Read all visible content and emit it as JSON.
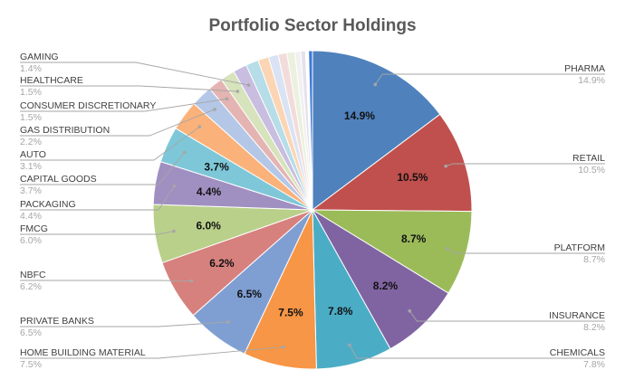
{
  "chart_data": {
    "type": "pie",
    "title": "Portfolio Sector Holdings",
    "value_unit": "%",
    "legend_placement": "callouts",
    "slices": [
      {
        "label": "PHARMA",
        "value": 14.9,
        "display": "14.9%",
        "color": "#4f81bd"
      },
      {
        "label": "RETAIL",
        "value": 10.5,
        "display": "10.5%",
        "color": "#c0504d"
      },
      {
        "label": "PLATFORM",
        "value": 8.7,
        "display": "8.7%",
        "color": "#9bbb59"
      },
      {
        "label": "INSURANCE",
        "value": 8.2,
        "display": "8.2%",
        "color": "#8064a2"
      },
      {
        "label": "CHEMICALS",
        "value": 7.8,
        "display": "7.8%",
        "color": "#4bacc6"
      },
      {
        "label": "HOME BUILDING MATERIAL",
        "value": 7.5,
        "display": "7.5%",
        "color": "#f79646"
      },
      {
        "label": "PRIVATE BANKS",
        "value": 6.5,
        "display": "6.5%",
        "color": "#7f9fd3"
      },
      {
        "label": "NBFC",
        "value": 6.2,
        "display": "6.2%",
        "color": "#d6817e"
      },
      {
        "label": "FMCG",
        "value": 6.0,
        "display": "6.0%",
        "color": "#b9d08a"
      },
      {
        "label": "PACKAGING",
        "value": 4.4,
        "display": "4.4%",
        "color": "#a08fc1"
      },
      {
        "label": "CAPITAL GOODS",
        "value": 3.7,
        "display": "3.7%",
        "color": "#7ec7d8"
      },
      {
        "label": "AUTO",
        "value": 3.1,
        "display": "3.1%",
        "color": "#fab27a"
      },
      {
        "label": "GAS DISTRIBUTION",
        "value": 2.2,
        "display": "2.2%",
        "color": "#b4c7e7"
      },
      {
        "label": "CONSUMER DISCRETIONARY",
        "value": 1.5,
        "display": "1.5%",
        "color": "#e4b4b2"
      },
      {
        "label": "HEALTHCARE",
        "value": 1.5,
        "display": "1.5%",
        "color": "#d6e3bc"
      },
      {
        "label": "GAMING",
        "value": 1.4,
        "display": "1.4%",
        "color": "#c9bde0"
      },
      {
        "label": "",
        "value": 1.3,
        "display": "",
        "color": "#b6dde8"
      },
      {
        "label": "",
        "value": 1.1,
        "display": "",
        "color": "#fcd5b4"
      },
      {
        "label": "",
        "value": 1.0,
        "display": "",
        "color": "#dae3f3"
      },
      {
        "label": "",
        "value": 0.9,
        "display": "",
        "color": "#f2dcdb"
      },
      {
        "label": "",
        "value": 0.8,
        "display": "",
        "color": "#ebf1de"
      },
      {
        "label": "",
        "value": 0.6,
        "display": "",
        "color": "#f1f1f1"
      },
      {
        "label": "",
        "value": 0.5,
        "display": "",
        "color": "#e6e0ec"
      },
      {
        "label": "",
        "value": 0.3,
        "display": "",
        "color": "#ffffff"
      },
      {
        "label": "",
        "value": 0.4,
        "display": "",
        "color": "#3c78d8"
      }
    ]
  }
}
